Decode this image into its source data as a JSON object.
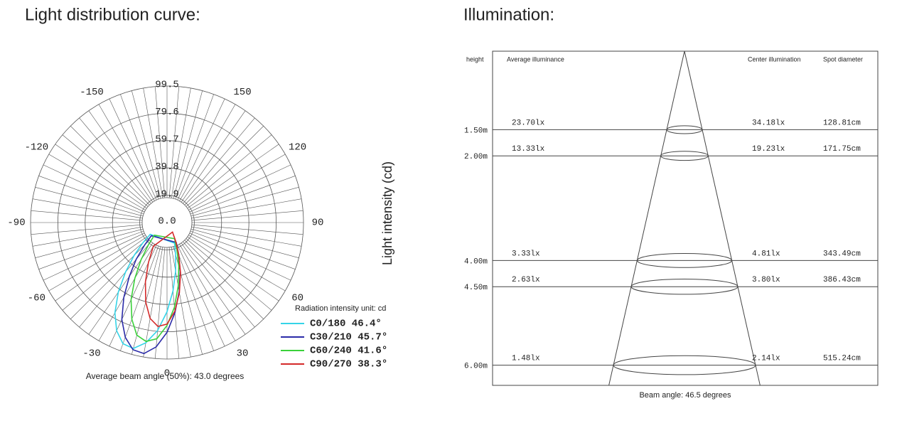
{
  "chart_data": [
    {
      "type": "polar",
      "title": "Light distribution curve:",
      "y_label": "Light intensity (cd)",
      "unit_note": "Radiation intensity unit: cd",
      "footnote": "Average beam angle (50%): 43.0 degrees",
      "angle_ticks": [
        -150,
        -120,
        -90,
        -60,
        -30,
        0,
        30,
        60,
        90,
        120,
        150
      ],
      "rlim": [
        0,
        99.5
      ],
      "rticks": [
        {
          "value": 0,
          "label": "0.0"
        },
        19.9,
        39.8,
        59.7,
        79.6,
        99.5
      ],
      "series": [
        {
          "name": "C0/180 46.4°",
          "color": "#35d4e8",
          "theta": [
            -55,
            -50,
            -45,
            -40,
            -35,
            -30,
            -25,
            -20,
            -15,
            -10,
            -5,
            0,
            5,
            10,
            15,
            20
          ],
          "r": [
            15,
            23,
            34,
            47,
            62,
            76,
            87,
            94,
            95,
            89,
            79,
            65,
            50,
            36,
            24,
            16
          ]
        },
        {
          "name": "C30/210 45.7°",
          "color": "#2a2aa8",
          "theta": [
            -50,
            -45,
            -40,
            -35,
            -30,
            -25,
            -20,
            -15,
            -10,
            -5,
            0,
            5,
            10,
            15,
            20,
            25
          ],
          "r": [
            15,
            23,
            35,
            48,
            63,
            78,
            89,
            96,
            97,
            91,
            80,
            66,
            51,
            37,
            25,
            16
          ]
        },
        {
          "name": "C60/240 41.6°",
          "color": "#3ad13a",
          "theta": [
            -45,
            -40,
            -35,
            -30,
            -25,
            -20,
            -15,
            -10,
            -5,
            0,
            5,
            10,
            15,
            20,
            25
          ],
          "r": [
            13,
            21,
            33,
            47,
            62,
            75,
            85,
            88,
            85,
            75,
            62,
            47,
            33,
            21,
            13
          ]
        },
        {
          "name": "C90/270 38.3°",
          "color": "#d42a2a",
          "theta": [
            -30,
            -25,
            -20,
            -15,
            -10,
            -5,
            0,
            5,
            10,
            15,
            20,
            25,
            30
          ],
          "r": [
            20,
            32,
            46,
            60,
            71,
            76,
            74,
            65,
            52,
            38,
            25,
            15,
            8
          ]
        }
      ]
    },
    {
      "type": "illumination",
      "title": "Illumination:",
      "headers": [
        "height",
        "Average illuminance",
        "Center illumination",
        "Spot diameter"
      ],
      "footnote": "Beam angle: 46.5 degrees",
      "heights": [
        {
          "value": 1.5,
          "label": "1.50m"
        },
        {
          "value": 2,
          "label": "2.00m"
        },
        {
          "value": 4,
          "label": "4.00m"
        },
        {
          "value": 4.5,
          "label": "4.50m"
        },
        {
          "value": 6,
          "label": "6.00m"
        }
      ],
      "average_illuminance": [
        "23.70lx",
        "13.33lx",
        "3.33lx",
        "2.63lx",
        "1.48lx"
      ],
      "center_illumination": [
        "34.18lx",
        "19.23lx",
        "4.81lx",
        "3.80lx",
        "2.14lx"
      ],
      "spot_diameter": [
        {
          "value": 128.81,
          "label": "128.81cm"
        },
        {
          "value": 171.75,
          "label": "171.75cm"
        },
        {
          "value": 343.49,
          "label": "343.49cm"
        },
        {
          "value": 386.43,
          "label": "386.43cm"
        },
        {
          "value": 515.24,
          "label": "515.24cm"
        }
      ]
    }
  ]
}
